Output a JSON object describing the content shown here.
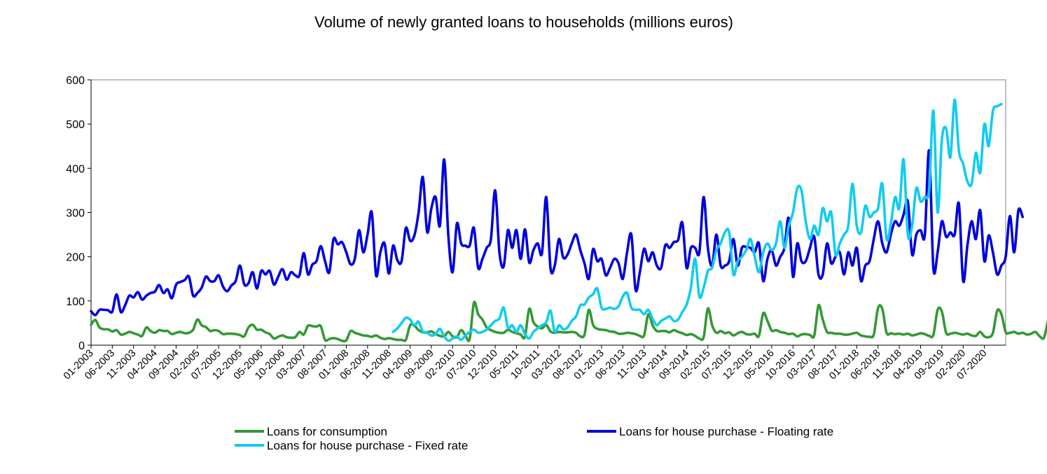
{
  "chart_data": {
    "type": "line",
    "title": "Volume of newly granted loans to households (millions euros)",
    "xlabel": "",
    "ylabel": "",
    "ylim": [
      0,
      600
    ],
    "yticks": [
      0,
      100,
      200,
      300,
      400,
      500,
      600
    ],
    "grid": false,
    "legend_position": "bottom",
    "x_start": "01-2003",
    "x_end": "12-2020",
    "x_ticks": [
      "01-2003",
      "06-2003",
      "11-2003",
      "04-2004",
      "09-2004",
      "02-2005",
      "07-2005",
      "12-2005",
      "05-2006",
      "10-2006",
      "03-2007",
      "08-2007",
      "01-2008",
      "06-2008",
      "11-2008",
      "04-2009",
      "09-2009",
      "02-2010",
      "07-2010",
      "12-2010",
      "05-2011",
      "10-2011",
      "03-2012",
      "08-2012",
      "01-2013",
      "06-2013",
      "11-2013",
      "04-2014",
      "09-2014",
      "02-2015",
      "07-2015",
      "12-2015",
      "05-2016",
      "10-2016",
      "03-2017",
      "08-2017",
      "01-2018",
      "06-2018",
      "11-2018",
      "04-2019",
      "09-2019",
      "02-2020",
      "07-2020"
    ],
    "series": [
      {
        "name": "Loans for consumption",
        "color": "#339933",
        "start": "01-2003",
        "values": [
          46,
          57,
          40,
          36,
          36,
          31,
          34,
          24,
          26,
          30,
          27,
          24,
          21,
          40,
          32,
          28,
          34,
          32,
          32,
          25,
          28,
          30,
          27,
          28,
          35,
          58,
          45,
          41,
          32,
          34,
          32,
          25,
          26,
          26,
          25,
          23,
          20,
          40,
          46,
          35,
          35,
          29,
          25,
          15,
          19,
          22,
          18,
          17,
          18,
          30,
          24,
          44,
          43,
          42,
          43,
          12,
          14,
          16,
          14,
          10,
          11,
          32,
          28,
          25,
          22,
          21,
          19,
          22,
          17,
          14,
          16,
          14,
          12,
          12,
          12,
          45,
          44,
          34,
          29,
          29,
          31,
          25,
          21,
          20,
          30,
          20,
          18,
          34,
          22,
          14,
          96,
          70,
          58,
          40,
          34,
          30,
          28,
          28,
          35,
          30,
          27,
          24,
          19,
          82,
          52,
          42,
          38,
          46,
          31,
          28,
          30,
          29,
          29,
          30,
          28,
          20,
          24,
          80,
          46,
          37,
          35,
          34,
          31,
          30,
          26,
          26,
          28,
          27,
          25,
          21,
          22,
          70,
          45,
          32,
          32,
          32,
          29,
          34,
          30,
          27,
          23,
          25,
          21,
          15,
          18,
          83,
          45,
          28,
          32,
          27,
          29,
          22,
          27,
          30,
          25,
          24,
          26,
          21,
          72,
          55,
          33,
          34,
          30,
          28,
          25,
          26,
          20,
          24,
          25,
          23,
          22,
          90,
          58,
          30,
          28,
          26,
          26,
          24,
          24,
          26,
          28,
          22,
          20,
          19,
          24,
          84,
          82,
          28,
          27,
          25,
          26,
          24,
          26,
          22,
          24,
          27,
          25,
          21,
          23,
          80,
          76,
          28,
          26,
          28,
          26,
          24,
          26,
          22,
          21,
          30,
          20,
          18,
          28,
          78,
          70,
          30,
          28,
          30,
          26,
          28,
          24,
          26,
          30,
          20,
          17,
          56,
          80,
          50,
          20,
          18,
          24,
          30,
          45,
          35,
          30,
          28,
          26,
          28
        ]
      },
      {
        "name": "Loans for house purchase - Floating rate",
        "color": "#0000dd",
        "start": "01-2003",
        "values": [
          77,
          68,
          80,
          80,
          79,
          76,
          115,
          75,
          90,
          112,
          108,
          120,
          103,
          112,
          118,
          121,
          136,
          118,
          126,
          106,
          137,
          143,
          147,
          155,
          112,
          118,
          130,
          155,
          145,
          145,
          158,
          133,
          122,
          135,
          145,
          180,
          138,
          140,
          165,
          128,
          168,
          160,
          168,
          137,
          155,
          172,
          148,
          165,
          158,
          158,
          208,
          160,
          182,
          190,
          224,
          190,
          165,
          240,
          228,
          233,
          210,
          183,
          195,
          260,
          210,
          250,
          300,
          158,
          210,
          230,
          162,
          225,
          192,
          190,
          265,
          236,
          248,
          300,
          380,
          256,
          310,
          335,
          270,
          420,
          245,
          165,
          275,
          230,
          225,
          225,
          265,
          175,
          195,
          220,
          240,
          350,
          210,
          178,
          260,
          220,
          260,
          195,
          262,
          187,
          215,
          230,
          208,
          335,
          175,
          180,
          240,
          198,
          205,
          230,
          250,
          215,
          185,
          150,
          217,
          190,
          195,
          158,
          175,
          195,
          185,
          150,
          210,
          250,
          125,
          165,
          218,
          190,
          210,
          180,
          175,
          226,
          220,
          233,
          238,
          277,
          175,
          220,
          220,
          210,
          335,
          220,
          180,
          250,
          180,
          180,
          190,
          240,
          180,
          220,
          222,
          220,
          210,
          230,
          145,
          195,
          215,
          180,
          200,
          220,
          287,
          155,
          230,
          190,
          190,
          220,
          245,
          160,
          160,
          230,
          185,
          200,
          210,
          160,
          210,
          180,
          220,
          145,
          180,
          190,
          240,
          280,
          230,
          210,
          250,
          280,
          270,
          295,
          325,
          205,
          250,
          260,
          250,
          440,
          175,
          210,
          280,
          245,
          255,
          250,
          320,
          145,
          225,
          280,
          240,
          305,
          190,
          248,
          210,
          160,
          180,
          200,
          292,
          210,
          305,
          290
        ]
      },
      {
        "name": "Loans for house purchase - Fixed rate",
        "color": "#11ccee",
        "start": "12-2008",
        "values": [
          30,
          38,
          50,
          62,
          58,
          45,
          53,
          30,
          28,
          22,
          25,
          37,
          20,
          10,
          15,
          20,
          12,
          22,
          30,
          35,
          28,
          30,
          35,
          45,
          55,
          60,
          85,
          40,
          45,
          30,
          45,
          25,
          15,
          30,
          38,
          45,
          52,
          78,
          30,
          45,
          36,
          40,
          55,
          65,
          90,
          92,
          108,
          115,
          128,
          85,
          82,
          85,
          82,
          88,
          110,
          118,
          85,
          80,
          80,
          70,
          80,
          60,
          45,
          55,
          60,
          65,
          55,
          58,
          75,
          92,
          130,
          195,
          110,
          130,
          168,
          175,
          215,
          230,
          255,
          255,
          160,
          190,
          200,
          215,
          240,
          200,
          165,
          210,
          230,
          215,
          230,
          280,
          220,
          270,
          300,
          355,
          350,
          280,
          240,
          270,
          250,
          310,
          280,
          300,
          205,
          230,
          250,
          270,
          365,
          270,
          255,
          315,
          290,
          300,
          310,
          365,
          240,
          275,
          335,
          310,
          420,
          250,
          270,
          355,
          325,
          335,
          350,
          530,
          300,
          465,
          490,
          425,
          555,
          440,
          410,
          370,
          365,
          435,
          390,
          500,
          450,
          530,
          540,
          545
        ]
      }
    ]
  }
}
